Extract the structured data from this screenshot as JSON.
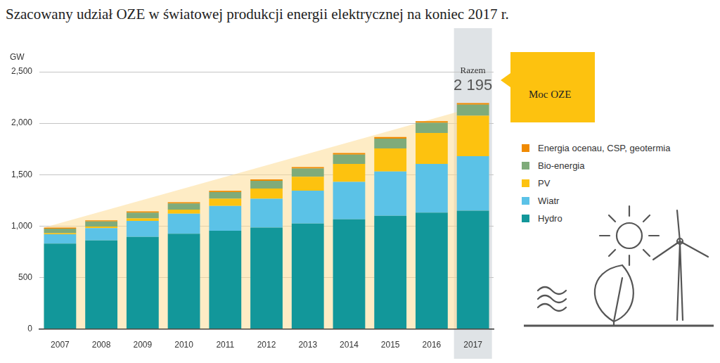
{
  "chart_data": {
    "type": "bar",
    "title": "Szacowany udział OZE w światowej produkcji energii elektrycznej na koniec 2017 r.",
    "y_label": "GW",
    "categories": [
      "2007",
      "2008",
      "2009",
      "2010",
      "2011",
      "2012",
      "2013",
      "2014",
      "2015",
      "2016",
      "2017"
    ],
    "series": [
      {
        "name": "Hydro",
        "color": "#12979a",
        "values": [
          830,
          860,
          895,
          925,
          955,
          985,
          1025,
          1065,
          1100,
          1130,
          1150
        ]
      },
      {
        "name": "Wiatr",
        "color": "#5bc2e7",
        "values": [
          90,
          120,
          155,
          195,
          240,
          280,
          320,
          365,
          430,
          475,
          530
        ]
      },
      {
        "name": "PV",
        "color": "#fdc20f",
        "values": [
          10,
          15,
          25,
          40,
          70,
          100,
          135,
          175,
          225,
          300,
          392
        ]
      },
      {
        "name": "Bio-energia",
        "color": "#7fab7a",
        "values": [
          45,
          50,
          55,
          60,
          65,
          75,
          80,
          90,
          95,
          100,
          108
        ]
      },
      {
        "name": "Energia ocenau, CSP, geotermia",
        "color": "#f08a00",
        "values": [
          10,
          10,
          12,
          12,
          12,
          13,
          14,
          15,
          15,
          15,
          15
        ]
      }
    ],
    "stacked": true,
    "ylim": [
      0,
      2500
    ],
    "yticks": [
      0,
      500,
      {
        "value": 1000,
        "label": "1,000"
      },
      {
        "value": 1500,
        "label": "1,500"
      },
      {
        "value": 2000,
        "label": "2,000"
      },
      {
        "value": 2500,
        "label": "2,500"
      }
    ],
    "grid": true,
    "legend": "right",
    "annotations": [
      {
        "text": "Razem",
        "value": 2195,
        "value_label": "2 195",
        "x": "2017"
      },
      {
        "text": "Moc OZE"
      }
    ]
  }
}
